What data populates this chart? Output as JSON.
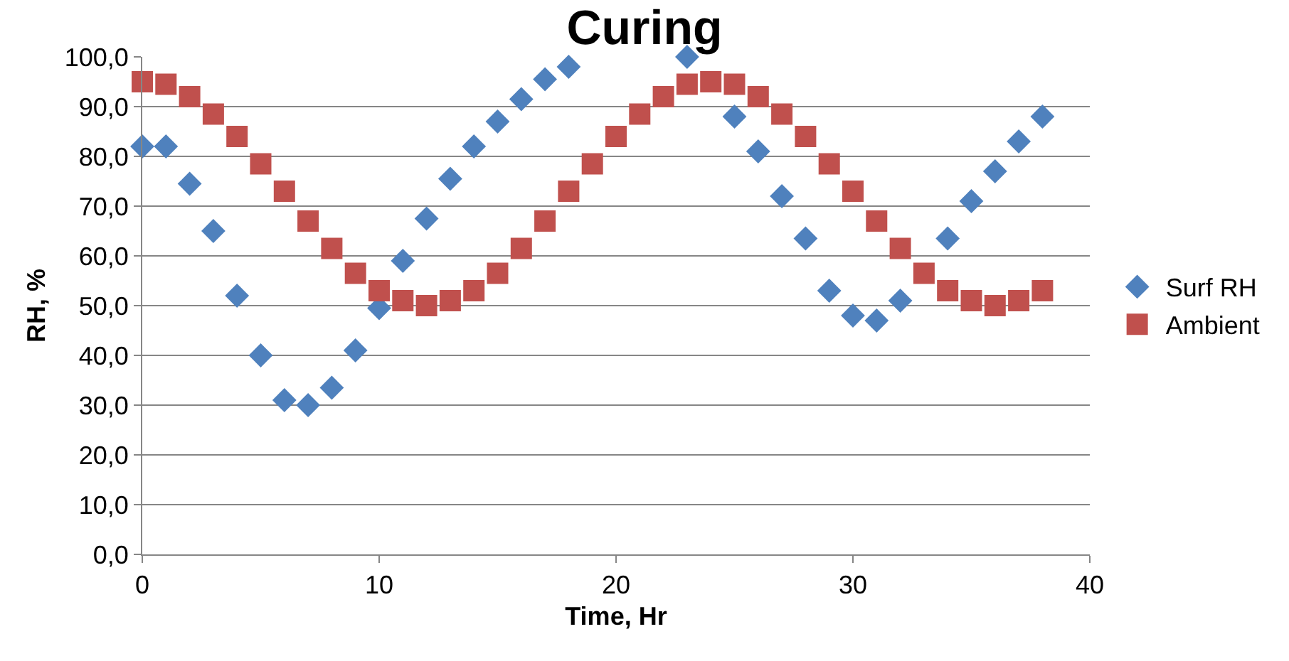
{
  "chart_data": {
    "type": "scatter",
    "title": "Curing",
    "xlabel": "Time, Hr",
    "ylabel": "RH, %",
    "x": [
      0,
      1,
      2,
      3,
      4,
      5,
      6,
      7,
      8,
      9,
      10,
      11,
      12,
      13,
      14,
      15,
      16,
      17,
      18,
      19,
      20,
      21,
      22,
      23,
      24,
      25,
      26,
      27,
      28,
      29,
      30,
      31,
      32,
      33,
      34,
      35,
      36,
      37,
      38
    ],
    "series": [
      {
        "name": "Surf RH",
        "color": "#4f81bd",
        "marker": "diamond",
        "values": [
          82,
          82,
          74.5,
          65,
          52,
          40,
          31,
          30,
          33.5,
          41,
          49.5,
          59,
          67.5,
          75.5,
          82,
          87,
          91.5,
          95.5,
          98,
          null,
          null,
          null,
          null,
          100,
          null,
          88,
          81,
          72,
          63.5,
          53,
          48,
          47,
          51,
          null,
          63.5,
          71,
          77,
          83,
          88
        ]
      },
      {
        "name": "Ambient",
        "color": "#c0504d",
        "marker": "square",
        "values": [
          95,
          94.5,
          92,
          88.5,
          84,
          78.5,
          73,
          67,
          61.5,
          56.5,
          53,
          51,
          50,
          51,
          53,
          56.5,
          61.5,
          67,
          73,
          78.5,
          84,
          88.5,
          92,
          94.5,
          95,
          94.5,
          92,
          88.5,
          84,
          78.5,
          73,
          67,
          61.5,
          56.5,
          53,
          51,
          50,
          51,
          53
        ]
      }
    ],
    "xlim": [
      0,
      40
    ],
    "xticks": [
      0,
      10,
      20,
      30,
      40
    ],
    "ylim": [
      0,
      100
    ],
    "yticks": [
      {
        "value": 0,
        "label": "0,0"
      },
      {
        "value": 10,
        "label": "10,0"
      },
      {
        "value": 20,
        "label": "20,0"
      },
      {
        "value": 30,
        "label": "30,0"
      },
      {
        "value": 40,
        "label": "40,0"
      },
      {
        "value": 50,
        "label": "50,0"
      },
      {
        "value": 60,
        "label": "60,0"
      },
      {
        "value": 70,
        "label": "70,0"
      },
      {
        "value": 80,
        "label": "80,0"
      },
      {
        "value": 90,
        "label": "90,0"
      },
      {
        "value": 100,
        "label": "100,0"
      }
    ],
    "grid": "y",
    "legend": "right"
  }
}
